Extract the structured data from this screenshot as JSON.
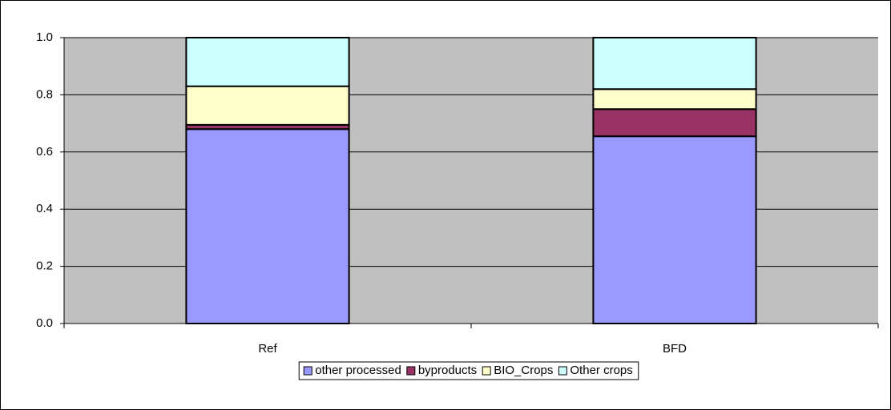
{
  "chart_data": {
    "type": "stacked_bar",
    "categories": [
      "Ref",
      "BFD"
    ],
    "series": [
      {
        "name": "other processed",
        "color": "#9999ff",
        "values": [
          0.68,
          0.655
        ]
      },
      {
        "name": "byproducts",
        "color": "#993366",
        "values": [
          0.015,
          0.095
        ]
      },
      {
        "name": "BIO_Crops",
        "color": "#ffffcc",
        "values": [
          0.135,
          0.07
        ]
      },
      {
        "name": "Other crops",
        "color": "#ccffff",
        "values": [
          0.17,
          0.18
        ]
      }
    ],
    "ylim": [
      0,
      1
    ],
    "yticks": [
      {
        "value": 0,
        "label": "0.0"
      },
      0.2,
      0.4,
      0.6,
      0.8,
      {
        "value": 1,
        "label": "1.0"
      }
    ],
    "grid": true,
    "legend": "bottom",
    "plot_background": "#c0c0c0"
  }
}
